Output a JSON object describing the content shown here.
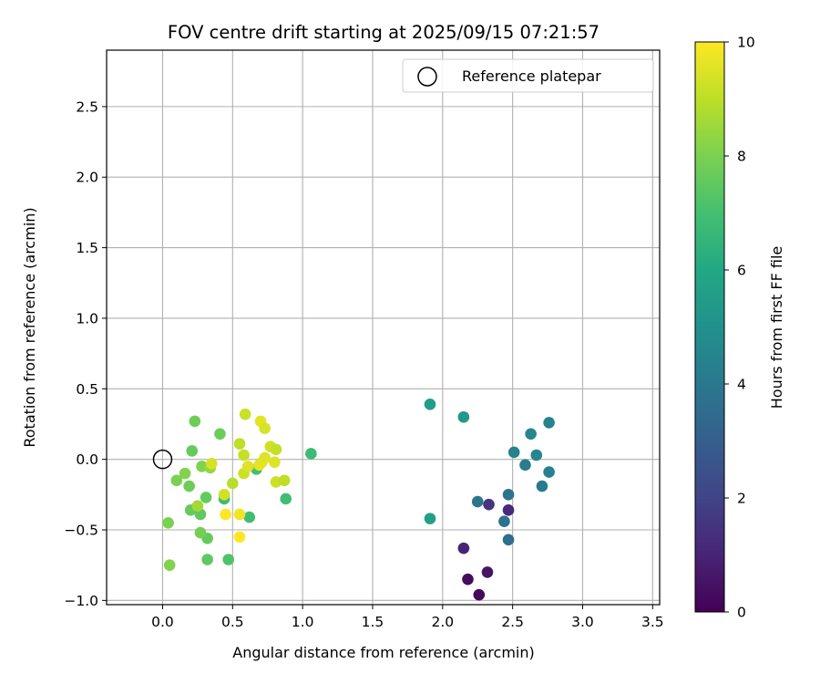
{
  "chart_data": {
    "type": "scatter",
    "title": "FOV centre drift starting at 2025/09/15 07:21:57",
    "xlabel": "Angular distance from reference (arcmin)",
    "ylabel": "Rotation from reference (arcmin)",
    "xlim": [
      -0.4,
      3.55
    ],
    "ylim": [
      -1.03,
      2.9
    ],
    "xticks": [
      "0.0",
      "0.5",
      "1.0",
      "1.5",
      "2.0",
      "2.5",
      "3.0",
      "3.5"
    ],
    "xtick_values": [
      0,
      0.5,
      1.0,
      1.5,
      2.0,
      2.5,
      3.0,
      3.5
    ],
    "yticks": [
      "2.5",
      "2.0",
      "1.5",
      "1.0",
      "0.5",
      "0.0",
      "−0.5",
      "−1.0"
    ],
    "ytick_values": [
      2.5,
      2.0,
      1.5,
      1.0,
      0.5,
      0.0,
      -0.5,
      -1.0
    ],
    "grid": true,
    "legend_position": "top-right",
    "legend": {
      "label": "Reference platepar"
    },
    "reference": {
      "x": 0.0,
      "y": 0.0
    },
    "colorbar": {
      "label": "Hours from first FF file",
      "range": [
        0,
        10
      ],
      "ticks": [
        "0",
        "2",
        "4",
        "6",
        "8",
        "10"
      ],
      "tick_values": [
        0,
        2,
        4,
        6,
        8,
        10
      ],
      "colormap": "viridis"
    },
    "points": [
      {
        "x": 2.26,
        "y": -0.96,
        "h": 0.2
      },
      {
        "x": 2.18,
        "y": -0.85,
        "h": 0.3
      },
      {
        "x": 2.32,
        "y": -0.8,
        "h": 0.5
      },
      {
        "x": 2.15,
        "y": -0.63,
        "h": 1.0
      },
      {
        "x": 2.47,
        "y": -0.36,
        "h": 1.2
      },
      {
        "x": 2.33,
        "y": -0.32,
        "h": 1.5
      },
      {
        "x": 2.47,
        "y": -0.57,
        "h": 3.6
      },
      {
        "x": 2.44,
        "y": -0.44,
        "h": 3.7
      },
      {
        "x": 2.25,
        "y": -0.3,
        "h": 3.9
      },
      {
        "x": 2.47,
        "y": -0.25,
        "h": 3.8
      },
      {
        "x": 2.71,
        "y": -0.19,
        "h": 4.1
      },
      {
        "x": 2.76,
        "y": -0.09,
        "h": 4.3
      },
      {
        "x": 2.59,
        "y": -0.04,
        "h": 4.2
      },
      {
        "x": 2.51,
        "y": 0.05,
        "h": 4.4
      },
      {
        "x": 2.67,
        "y": 0.03,
        "h": 4.5
      },
      {
        "x": 2.63,
        "y": 0.18,
        "h": 4.6
      },
      {
        "x": 2.76,
        "y": 0.26,
        "h": 4.4
      },
      {
        "x": 2.15,
        "y": 0.3,
        "h": 5.3
      },
      {
        "x": 1.91,
        "y": 0.39,
        "h": 5.5
      },
      {
        "x": 1.91,
        "y": -0.42,
        "h": 5.6
      },
      {
        "x": 1.06,
        "y": 0.04,
        "h": 6.8
      },
      {
        "x": 0.88,
        "y": -0.28,
        "h": 6.9
      },
      {
        "x": 0.62,
        "y": -0.41,
        "h": 6.9
      },
      {
        "x": 0.67,
        "y": -0.07,
        "h": 7.0
      },
      {
        "x": 0.44,
        "y": -0.28,
        "h": 6.8
      },
      {
        "x": 0.47,
        "y": -0.71,
        "h": 7.2
      },
      {
        "x": 0.32,
        "y": -0.71,
        "h": 7.5
      },
      {
        "x": 0.32,
        "y": -0.56,
        "h": 7.6
      },
      {
        "x": 0.27,
        "y": -0.52,
        "h": 7.9
      },
      {
        "x": 0.04,
        "y": -0.45,
        "h": 8.0
      },
      {
        "x": 0.05,
        "y": -0.75,
        "h": 8.1
      },
      {
        "x": 0.2,
        "y": -0.36,
        "h": 7.6
      },
      {
        "x": 0.27,
        "y": -0.39,
        "h": 7.5
      },
      {
        "x": 0.31,
        "y": -0.27,
        "h": 7.6
      },
      {
        "x": 0.25,
        "y": -0.33,
        "h": 8.6
      },
      {
        "x": 0.1,
        "y": -0.15,
        "h": 8.0
      },
      {
        "x": 0.19,
        "y": -0.19,
        "h": 7.8
      },
      {
        "x": 0.16,
        "y": -0.1,
        "h": 8.1
      },
      {
        "x": 0.21,
        "y": 0.06,
        "h": 7.6
      },
      {
        "x": 0.23,
        "y": 0.27,
        "h": 7.8
      },
      {
        "x": 0.28,
        "y": -0.05,
        "h": 8.1
      },
      {
        "x": 0.34,
        "y": -0.06,
        "h": 8.4
      },
      {
        "x": 0.41,
        "y": 0.18,
        "h": 7.7
      },
      {
        "x": 0.35,
        "y": -0.03,
        "h": 9.4
      },
      {
        "x": 0.44,
        "y": -0.25,
        "h": 9.3
      },
      {
        "x": 0.45,
        "y": -0.39,
        "h": 10.0
      },
      {
        "x": 0.55,
        "y": -0.39,
        "h": 9.8
      },
      {
        "x": 0.55,
        "y": -0.55,
        "h": 10.0
      },
      {
        "x": 0.5,
        "y": -0.17,
        "h": 8.9
      },
      {
        "x": 0.55,
        "y": 0.11,
        "h": 9.0
      },
      {
        "x": 0.58,
        "y": -0.1,
        "h": 9.2
      },
      {
        "x": 0.58,
        "y": 0.03,
        "h": 9.1
      },
      {
        "x": 0.61,
        "y": -0.05,
        "h": 9.5
      },
      {
        "x": 0.59,
        "y": 0.32,
        "h": 9.2
      },
      {
        "x": 0.7,
        "y": 0.27,
        "h": 9.6
      },
      {
        "x": 0.73,
        "y": 0.22,
        "h": 9.4
      },
      {
        "x": 0.71,
        "y": -0.02,
        "h": 9.7
      },
      {
        "x": 0.73,
        "y": 0.01,
        "h": 9.5
      },
      {
        "x": 0.69,
        "y": -0.04,
        "h": 9.6
      },
      {
        "x": 0.77,
        "y": 0.09,
        "h": 9.3
      },
      {
        "x": 0.81,
        "y": 0.07,
        "h": 9.1
      },
      {
        "x": 0.8,
        "y": -0.02,
        "h": 9.5
      },
      {
        "x": 0.81,
        "y": -0.16,
        "h": 9.2
      },
      {
        "x": 0.87,
        "y": -0.15,
        "h": 9.0
      }
    ]
  }
}
